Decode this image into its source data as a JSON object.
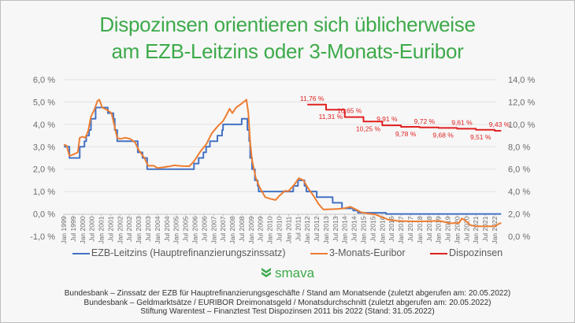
{
  "title_line1": "Dispozinsen orientieren sich üblicherweise",
  "title_line2": "am EZB-Leitzins oder 3-Monats-Euribor",
  "colors": {
    "title": "#3daa4a",
    "ezb": "#4472c4",
    "euribor": "#ed7d31",
    "dispo": "#e02020",
    "grid": "#e2e2e2"
  },
  "legend": [
    {
      "label": "EZB-Leitzins (Hauptrefinanzierungszinssatz)",
      "color": "#4472c4"
    },
    {
      "label": "3-Monats-Euribor",
      "color": "#ed7d31"
    },
    {
      "label": "Dispozinsen",
      "color": "#e02020"
    }
  ],
  "logo": {
    "text": "smava",
    "icon": "chevron-stack-icon"
  },
  "sources": [
    "Bundesbank – Zinssatz der EZB für Hauptrefinanzierungsgeschäfte / Stand am Monatsende (zuletzt abgerufen am: 20.05.2022)",
    "Bundesbank – Geldmarktsätze / EURIBOR Dreimonatsgeld / Monatsdurchschnitt (zuletzt abgerufen am: 20.05.2022)",
    "Stiftung Warentest – Finanztest Test Dispozinsen 2011 bis 2022 (Stand: 31.05.2022)"
  ],
  "chart_data": {
    "type": "line",
    "title": "Dispozinsen orientieren sich üblicherweise am EZB-Leitzins oder 3-Monats-Euribor",
    "xlabel": "",
    "ylabel_left": "",
    "ylabel_right": "",
    "ylim_left": [
      -1,
      6
    ],
    "ylim_right": [
      0,
      14
    ],
    "yticks_left": [
      "6,0 %",
      "5,0 %",
      "4,0 %",
      "3,0 %",
      "2,0 %",
      "1,0 %",
      "0,0 %",
      "-1,0 %"
    ],
    "yticks_right": [
      "14,0 %",
      "12,0 %",
      "10,0 %",
      "8,0 %",
      "6,0 %",
      "4,0 %",
      "2,0 %",
      "0,0 %"
    ],
    "grid": true,
    "legend_position": "bottom",
    "xticks": [
      "Jan 1999",
      "Jul 1999",
      "Jan 2000",
      "Jul 2000",
      "Jan 2001",
      "Jul 2001",
      "Jan 2002",
      "Jul 2002",
      "Jan 2003",
      "Jul 2003",
      "Jan 2004",
      "Jul 2004",
      "Jan 2005",
      "Jul 2005",
      "Jan 2006",
      "Jul 2006",
      "Jan 2007",
      "Jul 2007",
      "Jan 2008",
      "Jul 2008",
      "Jan 2009",
      "Jul 2009",
      "Jan 2010",
      "Jul 2010",
      "Jan 2011",
      "Jul 2011",
      "Jan 2012",
      "Jul 2012",
      "Jan 2013",
      "Jul 2013",
      "Jan 2014",
      "Jul 2014",
      "Jan 2015",
      "Jul 2015",
      "Jan 2016",
      "Jul 2016",
      "Jan 2017",
      "Jul 2017",
      "Jan 2018",
      "Jul 2018",
      "Jan 2019",
      "Jul 2019",
      "Jan 2020",
      "Jul 2020",
      "Jan 2021",
      "Jul 2021",
      "Jan 2022"
    ],
    "series": [
      {
        "name": "EZB-Leitzins (Hauptrefinanzierungszinssatz)",
        "axis": "left",
        "step": true,
        "points": [
          [
            1999.0,
            3.0
          ],
          [
            1999.3,
            2.5
          ],
          [
            1999.85,
            3.0
          ],
          [
            2000.1,
            3.25
          ],
          [
            2000.2,
            3.5
          ],
          [
            2000.35,
            3.75
          ],
          [
            2000.45,
            4.25
          ],
          [
            2000.7,
            4.75
          ],
          [
            2001.35,
            4.5
          ],
          [
            2001.65,
            4.25
          ],
          [
            2001.72,
            3.75
          ],
          [
            2001.85,
            3.25
          ],
          [
            2002.95,
            2.75
          ],
          [
            2003.2,
            2.5
          ],
          [
            2003.45,
            2.0
          ],
          [
            2005.95,
            2.25
          ],
          [
            2006.2,
            2.5
          ],
          [
            2006.45,
            2.75
          ],
          [
            2006.6,
            3.0
          ],
          [
            2006.8,
            3.25
          ],
          [
            2007.2,
            3.5
          ],
          [
            2007.45,
            3.75
          ],
          [
            2007.5,
            4.0
          ],
          [
            2008.5,
            4.25
          ],
          [
            2008.8,
            3.75
          ],
          [
            2008.9,
            3.25
          ],
          [
            2008.95,
            2.5
          ],
          [
            2009.05,
            2.0
          ],
          [
            2009.2,
            1.5
          ],
          [
            2009.35,
            1.25
          ],
          [
            2009.4,
            1.0
          ],
          [
            2011.25,
            1.25
          ],
          [
            2011.5,
            1.5
          ],
          [
            2011.85,
            1.25
          ],
          [
            2011.95,
            1.0
          ],
          [
            2012.5,
            0.75
          ],
          [
            2013.35,
            0.5
          ],
          [
            2013.85,
            0.25
          ],
          [
            2014.45,
            0.15
          ],
          [
            2014.7,
            0.05
          ],
          [
            2016.2,
            0.0
          ],
          [
            2022.35,
            0.0
          ]
        ]
      },
      {
        "name": "3-Monats-Euribor",
        "axis": "left",
        "step": false,
        "points": [
          [
            1999.0,
            3.1
          ],
          [
            1999.15,
            3.05
          ],
          [
            1999.3,
            2.6
          ],
          [
            1999.5,
            2.65
          ],
          [
            1999.75,
            2.75
          ],
          [
            1999.85,
            3.4
          ],
          [
            2000.0,
            3.45
          ],
          [
            2000.15,
            3.4
          ],
          [
            2000.3,
            3.7
          ],
          [
            2000.45,
            4.35
          ],
          [
            2000.6,
            4.6
          ],
          [
            2000.8,
            5.05
          ],
          [
            2000.9,
            5.1
          ],
          [
            2001.05,
            4.75
          ],
          [
            2001.3,
            4.65
          ],
          [
            2001.55,
            4.5
          ],
          [
            2001.7,
            3.95
          ],
          [
            2001.85,
            3.4
          ],
          [
            2002.0,
            3.35
          ],
          [
            2002.3,
            3.4
          ],
          [
            2002.55,
            3.35
          ],
          [
            2002.8,
            3.2
          ],
          [
            2003.0,
            2.85
          ],
          [
            2003.3,
            2.5
          ],
          [
            2003.5,
            2.15
          ],
          [
            2003.8,
            2.15
          ],
          [
            2004.0,
            2.05
          ],
          [
            2004.3,
            2.08
          ],
          [
            2004.6,
            2.12
          ],
          [
            2004.9,
            2.17
          ],
          [
            2005.3,
            2.14
          ],
          [
            2005.7,
            2.13
          ],
          [
            2005.95,
            2.35
          ],
          [
            2006.3,
            2.8
          ],
          [
            2006.6,
            3.1
          ],
          [
            2006.9,
            3.6
          ],
          [
            2007.2,
            3.9
          ],
          [
            2007.5,
            4.15
          ],
          [
            2007.7,
            4.45
          ],
          [
            2007.85,
            4.7
          ],
          [
            2008.0,
            4.5
          ],
          [
            2008.2,
            4.75
          ],
          [
            2008.45,
            4.9
          ],
          [
            2008.6,
            5.0
          ],
          [
            2008.75,
            5.1
          ],
          [
            2008.85,
            4.5
          ],
          [
            2008.95,
            3.2
          ],
          [
            2009.05,
            2.4
          ],
          [
            2009.25,
            1.6
          ],
          [
            2009.45,
            1.2
          ],
          [
            2009.75,
            0.75
          ],
          [
            2010.0,
            0.68
          ],
          [
            2010.3,
            0.62
          ],
          [
            2010.5,
            0.8
          ],
          [
            2010.8,
            1.03
          ],
          [
            2011.0,
            1.02
          ],
          [
            2011.3,
            1.3
          ],
          [
            2011.55,
            1.6
          ],
          [
            2011.8,
            1.5
          ],
          [
            2012.0,
            1.2
          ],
          [
            2012.3,
            0.85
          ],
          [
            2012.6,
            0.45
          ],
          [
            2012.85,
            0.2
          ],
          [
            2013.2,
            0.21
          ],
          [
            2013.6,
            0.22
          ],
          [
            2013.95,
            0.25
          ],
          [
            2014.3,
            0.32
          ],
          [
            2014.6,
            0.2
          ],
          [
            2014.85,
            0.08
          ],
          [
            2015.2,
            0.02
          ],
          [
            2015.6,
            -0.02
          ],
          [
            2015.95,
            -0.13
          ],
          [
            2016.35,
            -0.26
          ],
          [
            2016.8,
            -0.31
          ],
          [
            2017.5,
            -0.33
          ],
          [
            2018.0,
            -0.33
          ],
          [
            2018.5,
            -0.32
          ],
          [
            2019.0,
            -0.31
          ],
          [
            2019.3,
            -0.35
          ],
          [
            2019.6,
            -0.42
          ],
          [
            2020.1,
            -0.4
          ],
          [
            2020.25,
            -0.2
          ],
          [
            2020.45,
            -0.3
          ],
          [
            2020.7,
            -0.5
          ],
          [
            2021.0,
            -0.55
          ],
          [
            2021.5,
            -0.55
          ],
          [
            2022.0,
            -0.55
          ],
          [
            2022.2,
            -0.45
          ],
          [
            2022.35,
            -0.4
          ]
        ]
      },
      {
        "name": "Dispozinsen",
        "axis": "right",
        "step": true,
        "points": [
          [
            2012.0,
            11.76
          ],
          [
            2013.0,
            11.31
          ],
          [
            2014.0,
            10.65
          ],
          [
            2015.0,
            10.25
          ],
          [
            2016.0,
            9.91
          ],
          [
            2017.0,
            9.78
          ],
          [
            2018.0,
            9.72
          ],
          [
            2019.0,
            9.68
          ],
          [
            2020.0,
            9.61
          ],
          [
            2021.0,
            9.51
          ],
          [
            2022.0,
            9.43
          ],
          [
            2022.35,
            9.43
          ]
        ],
        "labels": [
          "11,76 %",
          "11,31 %",
          "10,65 %",
          "10,25 %",
          "9,91 %",
          "9,78 %",
          "9,72 %",
          "9,68 %",
          "9,61 %",
          "9,51 %",
          "9,43 %"
        ]
      }
    ]
  }
}
